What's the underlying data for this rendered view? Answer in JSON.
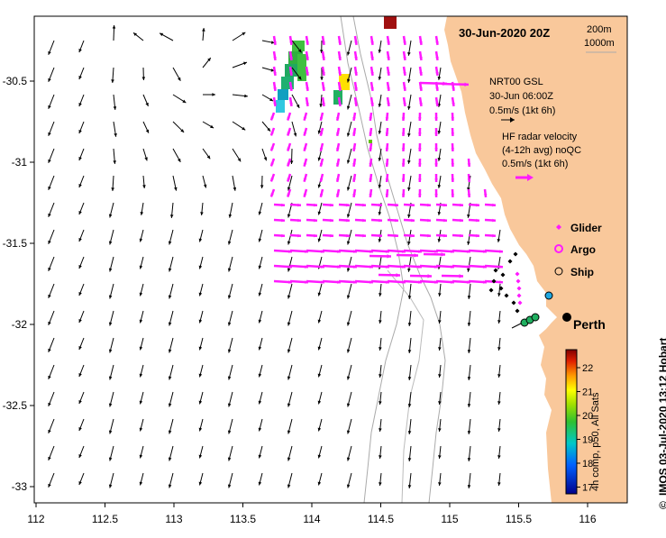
{
  "map": {
    "title_date": "30-Jun-2020 20Z",
    "depth_legend": [
      "200m",
      "1000m"
    ],
    "place_label": "Perth",
    "copyright_symbol": "©",
    "credit": "IMOS 03-Jul-2020 13:12 Hobart",
    "lon_ticks": [
      "112",
      "112.5",
      "113",
      "113.5",
      "114",
      "114.5",
      "115",
      "115.5",
      "116"
    ],
    "lat_ticks": [
      "-30.5",
      "-31",
      "-31.5",
      "-32",
      "-32.5",
      "-33"
    ],
    "current_model": {
      "lines": [
        "NRT00 GSL",
        "30-Jun 06:00Z",
        "0.5m/s (1kt 6h)"
      ]
    },
    "hf_radar": {
      "lines": [
        "HF radar velocity",
        "(4-12h avg) noQC",
        "0.5m/s (1kt 6h)"
      ]
    },
    "legend": {
      "glider": "Glider",
      "argo": "Argo",
      "ship": "Ship"
    },
    "colorbar": {
      "ticks": [
        "22",
        "21",
        "20",
        "19",
        "18",
        "17"
      ],
      "label": "4h comp, p50, All Sats"
    },
    "colors": {
      "land": "#f9c89b",
      "vector": "#000000",
      "hf_vector": "#ff1aff",
      "bathymetry": "#aaaaaa"
    }
  }
}
